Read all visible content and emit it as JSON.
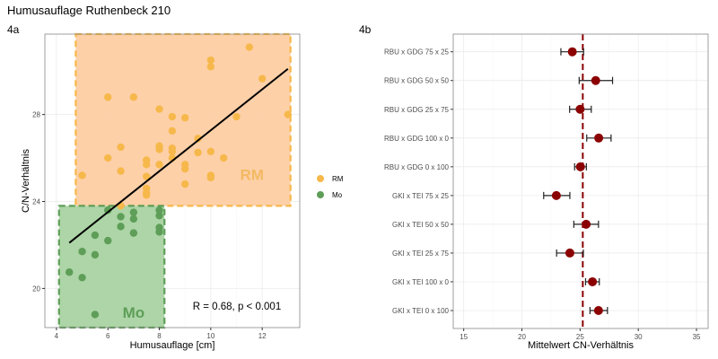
{
  "title": "Humusauflage Ruthenbeck 210",
  "chart_data": [
    {
      "panel_label": "4a",
      "type": "scatter",
      "xlabel": "Humusauflage [cm]",
      "ylabel": "C/N-Verhältnis",
      "xlim": [
        3.55,
        13.46
      ],
      "ylim": [
        18.2,
        31.7
      ],
      "xticks": [
        4,
        6,
        8,
        10,
        12
      ],
      "yticks": [
        20,
        24,
        28
      ],
      "grid": true,
      "legend": {
        "placement": "right",
        "entries": [
          {
            "label": "RM",
            "color": "#f7b84b"
          },
          {
            "label": "Mo",
            "color": "#5e9e58"
          }
        ]
      },
      "annotation": "R = 0.68, p < 0.001",
      "regression_line": {
        "x": [
          4.5,
          13.0
        ],
        "y": [
          22.1,
          30.1
        ]
      },
      "regions": [
        {
          "label": "RM",
          "x": [
            4.75,
            13.1
          ],
          "y": [
            23.8,
            31.7
          ],
          "fill": "#fdcda3",
          "stroke": "#f7b84b",
          "text_color": "#f3b962"
        },
        {
          "label": "Mo",
          "x": [
            4.1,
            8.2
          ],
          "y": [
            18.2,
            23.8
          ],
          "fill": "#a9d3a2",
          "stroke": "#5e9e58",
          "text_color": "#5e9e58"
        }
      ],
      "series": [
        {
          "name": "RM",
          "color": "#f7b84b",
          "points": [
            [
              11.5,
              31.1
            ],
            [
              10,
              30.5
            ],
            [
              10,
              30.2
            ],
            [
              12,
              29.65
            ],
            [
              6,
              28.8
            ],
            [
              7,
              28.8
            ],
            [
              8,
              28.25
            ],
            [
              8.5,
              27.9
            ],
            [
              9,
              27.85
            ],
            [
              13,
              28.0
            ],
            [
              11,
              27.9
            ],
            [
              8.5,
              27.25
            ],
            [
              9.5,
              26.9
            ],
            [
              8,
              26.55
            ],
            [
              8,
              26.4
            ],
            [
              8.5,
              26.45
            ],
            [
              8.5,
              26.3
            ],
            [
              9.5,
              26.25
            ],
            [
              10,
              26.3
            ],
            [
              10.5,
              26.0
            ],
            [
              6,
              26.0
            ],
            [
              6.5,
              26.5
            ],
            [
              6.5,
              25.4
            ],
            [
              7.5,
              25.9
            ],
            [
              7.5,
              25.7
            ],
            [
              8,
              25.7
            ],
            [
              8.5,
              26.0
            ],
            [
              9,
              25.7
            ],
            [
              9,
              25.5
            ],
            [
              7.5,
              25.15
            ],
            [
              10,
              25.2
            ],
            [
              10,
              25.1
            ],
            [
              5,
              25.2
            ],
            [
              9,
              24.8
            ],
            [
              7.5,
              24.6
            ],
            [
              7.5,
              24.4
            ],
            [
              7.5,
              24.3
            ],
            [
              6.5,
              23.8
            ]
          ]
        },
        {
          "name": "Mo",
          "color": "#5e9e58",
          "points": [
            [
              6,
              23.6
            ],
            [
              7,
              23.5
            ],
            [
              8,
              23.6
            ],
            [
              8,
              23.35
            ],
            [
              6.5,
              23.3
            ],
            [
              7,
              23.2
            ],
            [
              6.5,
              22.85
            ],
            [
              8,
              22.8
            ],
            [
              8,
              22.6
            ],
            [
              7,
              22.55
            ],
            [
              5.5,
              22.45
            ],
            [
              6,
              22.2
            ],
            [
              5,
              21.7
            ],
            [
              5.5,
              21.55
            ],
            [
              4.5,
              20.75
            ],
            [
              5,
              20.5
            ],
            [
              5.5,
              18.8
            ]
          ]
        }
      ]
    },
    {
      "panel_label": "4b",
      "type": "scatter",
      "xlabel": "Mittelwert CN-Verhältnis",
      "ylabel": "",
      "xlim": [
        14.1,
        36.0
      ],
      "xticks": [
        15,
        20,
        25,
        30,
        35
      ],
      "grid": true,
      "reference_line": 25.23,
      "point_color": "#8b0000",
      "categories": [
        "RBU x GDG 75 x 25",
        "RBU x GDG 50 x 50",
        "RBU x GDG 25 x 75",
        "RBU x GDG 100 x 0",
        "RBU x GDG 0 x 100",
        "GKI x TEI 75 x 25",
        "GKI x TEI 50 x 50",
        "GKI x TEI 25 x 75",
        "GKI x TEI 100 x 0",
        "GKI x TEI 0 x 100"
      ],
      "values": [
        24.33,
        26.34,
        25.0,
        26.6,
        25.03,
        22.96,
        25.52,
        24.12,
        26.06,
        26.58
      ],
      "lower": [
        23.35,
        24.92,
        24.1,
        25.57,
        24.53,
        21.87,
        24.46,
        22.98,
        25.47,
        25.85
      ],
      "upper": [
        25.3,
        27.79,
        25.96,
        27.66,
        25.54,
        24.12,
        26.58,
        25.28,
        26.65,
        27.35
      ]
    }
  ]
}
